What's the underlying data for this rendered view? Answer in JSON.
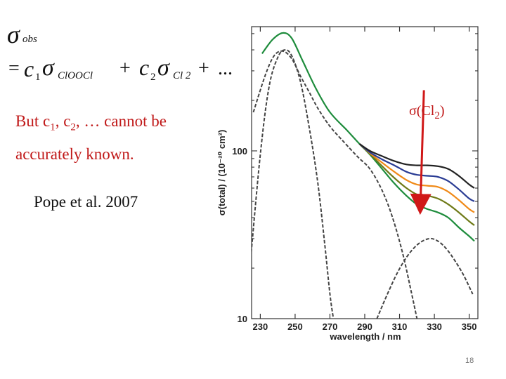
{
  "equation": {
    "lhs": "σ",
    "lhs_sub": "obs",
    "eq_sign": "=",
    "c1": "c",
    "c1_sub": "1",
    "sigma1": "σ",
    "sigma1_sub": "ClOOCl",
    "plus1": "+",
    "c2": "c",
    "c2_sub": "2",
    "sigma2": "σ",
    "sigma2_sub": "Cl 2",
    "plus2": "+",
    "ellipsis": "..."
  },
  "note": {
    "line1_a": "But c",
    "line1_sub1": "1",
    "line1_b": ", c",
    "line1_sub2": "2",
    "line1_c": ", … cannot be",
    "line2": "accurately known."
  },
  "citation": "Pope et al. 2007",
  "chart_label": {
    "a": "σ(Cl",
    "sub": "2",
    "b": ")"
  },
  "slide_number": "18",
  "chart_data": {
    "type": "line",
    "xlabel": "wavelength / nm",
    "ylabel": "σ(total) / (10⁻²⁰ cm²)",
    "yscale": "log",
    "xlim": [
      225,
      355
    ],
    "ylim": [
      10,
      550
    ],
    "x_ticks": [
      230,
      250,
      270,
      290,
      310,
      330,
      350
    ],
    "y_ticks": [
      {
        "value": 100,
        "label": "100"
      },
      {
        "value": 10,
        "label": "10"
      }
    ],
    "series": [
      {
        "name": "total-green",
        "color": "#1e8c3c",
        "dash": false,
        "points": [
          [
            231,
            380
          ],
          [
            237,
            460
          ],
          [
            243,
            505
          ],
          [
            248,
            470
          ],
          [
            254,
            350
          ],
          [
            262,
            235
          ],
          [
            270,
            170
          ],
          [
            280,
            132
          ],
          [
            287,
            110
          ],
          [
            293,
            95
          ],
          [
            300,
            78
          ],
          [
            307,
            64
          ],
          [
            314,
            54
          ],
          [
            320,
            48
          ],
          [
            326,
            45
          ],
          [
            332,
            43
          ],
          [
            338,
            40
          ],
          [
            344,
            35
          ],
          [
            350,
            31
          ],
          [
            353,
            29
          ]
        ]
      },
      {
        "name": "total-olive",
        "color": "#6f7a18",
        "dash": false,
        "points": [
          [
            287,
            110
          ],
          [
            293,
            96
          ],
          [
            300,
            81
          ],
          [
            307,
            69
          ],
          [
            314,
            60
          ],
          [
            320,
            55
          ],
          [
            326,
            54
          ],
          [
            332,
            52
          ],
          [
            338,
            48
          ],
          [
            344,
            43
          ],
          [
            350,
            38
          ],
          [
            353,
            36
          ]
        ]
      },
      {
        "name": "total-orange",
        "color": "#f08a18",
        "dash": false,
        "points": [
          [
            287,
            110
          ],
          [
            293,
            97
          ],
          [
            300,
            85
          ],
          [
            307,
            75
          ],
          [
            314,
            67
          ],
          [
            320,
            63
          ],
          [
            326,
            62
          ],
          [
            332,
            61
          ],
          [
            338,
            57
          ],
          [
            344,
            51
          ],
          [
            350,
            45
          ],
          [
            353,
            43
          ]
        ]
      },
      {
        "name": "total-blue",
        "color": "#2a3c94",
        "dash": false,
        "points": [
          [
            287,
            110
          ],
          [
            293,
            98
          ],
          [
            300,
            89
          ],
          [
            307,
            82
          ],
          [
            314,
            75
          ],
          [
            320,
            72
          ],
          [
            326,
            71
          ],
          [
            332,
            70
          ],
          [
            338,
            66
          ],
          [
            344,
            59
          ],
          [
            350,
            52
          ],
          [
            353,
            50
          ]
        ]
      },
      {
        "name": "total-black",
        "color": "#222222",
        "dash": false,
        "points": [
          [
            287,
            110
          ],
          [
            293,
            100
          ],
          [
            300,
            93
          ],
          [
            307,
            87
          ],
          [
            314,
            83
          ],
          [
            320,
            82
          ],
          [
            326,
            82
          ],
          [
            332,
            81
          ],
          [
            338,
            78
          ],
          [
            344,
            71
          ],
          [
            350,
            63
          ],
          [
            353,
            60
          ]
        ]
      },
      {
        "name": "ClOOCl-component",
        "color": "#444444",
        "dash": true,
        "points": [
          [
            226,
            170
          ],
          [
            233,
            285
          ],
          [
            238,
            370
          ],
          [
            243,
            393
          ],
          [
            248,
            355
          ],
          [
            253,
            280
          ],
          [
            258,
            225
          ],
          [
            263,
            180
          ],
          [
            270,
            140
          ],
          [
            278,
            113
          ],
          [
            286,
            92
          ],
          [
            293,
            78
          ],
          [
            300,
            58
          ],
          [
            306,
            40
          ],
          [
            312,
            24
          ],
          [
            317,
            14
          ],
          [
            320,
            10
          ]
        ]
      },
      {
        "name": "narrow-band-component",
        "color": "#444444",
        "dash": true,
        "points": [
          [
            224,
            20
          ],
          [
            230,
            95
          ],
          [
            235,
            240
          ],
          [
            240,
            360
          ],
          [
            244,
            400
          ],
          [
            248,
            370
          ],
          [
            253,
            260
          ],
          [
            258,
            140
          ],
          [
            263,
            65
          ],
          [
            267,
            28
          ],
          [
            270,
            14
          ],
          [
            272,
            10
          ]
        ]
      },
      {
        "name": "Cl2-component",
        "color": "#444444",
        "dash": true,
        "points": [
          [
            297,
            10
          ],
          [
            303,
            14
          ],
          [
            309,
            19
          ],
          [
            315,
            24
          ],
          [
            321,
            28
          ],
          [
            327,
            30
          ],
          [
            332,
            29
          ],
          [
            337,
            26
          ],
          [
            342,
            22
          ],
          [
            347,
            18
          ],
          [
            352,
            14
          ]
        ]
      }
    ],
    "arrow": {
      "from": [
        324,
        230
      ],
      "to": [
        322,
        48
      ],
      "color": "#d01818"
    }
  }
}
